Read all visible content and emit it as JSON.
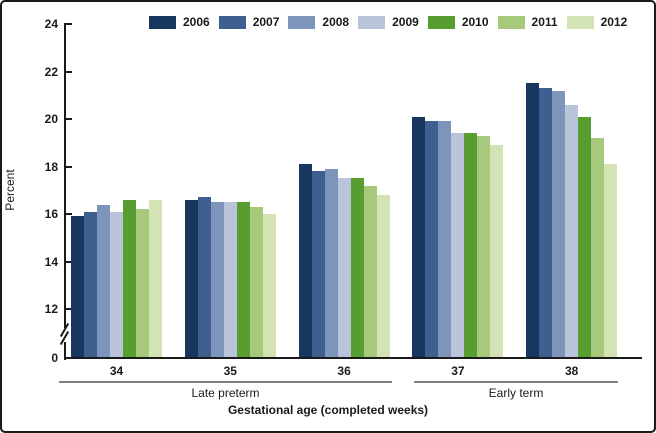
{
  "chart_data": {
    "type": "bar",
    "title": "",
    "xlabel": "Gestational age (completed weeks)",
    "ylabel": "Percent",
    "categories": [
      "34",
      "35",
      "36",
      "37",
      "38"
    ],
    "series": [
      {
        "name": "2006",
        "color": "#17375e",
        "values": [
          15.9,
          16.6,
          18.1,
          20.1,
          21.5
        ]
      },
      {
        "name": "2007",
        "color": "#3f608f",
        "values": [
          16.1,
          16.7,
          17.8,
          19.9,
          21.3
        ]
      },
      {
        "name": "2008",
        "color": "#7d95bb",
        "values": [
          16.4,
          16.5,
          17.9,
          19.9,
          21.2
        ]
      },
      {
        "name": "2009",
        "color": "#b9c3da",
        "values": [
          16.1,
          16.5,
          17.5,
          19.4,
          20.6
        ]
      },
      {
        "name": "2010",
        "color": "#579d30",
        "values": [
          16.6,
          16.5,
          17.5,
          19.4,
          20.1
        ]
      },
      {
        "name": "2011",
        "color": "#a7c97c",
        "values": [
          16.2,
          16.3,
          17.2,
          19.3,
          19.2
        ]
      },
      {
        "name": "2012",
        "color": "#d4e3b4",
        "values": [
          16.6,
          16.0,
          16.8,
          18.9,
          18.1
        ]
      }
    ],
    "y_ticks": [
      24,
      22,
      20,
      18,
      16,
      14,
      12,
      0
    ],
    "ylim": [
      0,
      24
    ],
    "axis_break": true,
    "grid": false,
    "legend_position": "top",
    "category_groups": [
      {
        "label": "Late preterm",
        "categories": [
          "34",
          "35",
          "36"
        ]
      },
      {
        "label": "Early term",
        "categories": [
          "37",
          "38"
        ]
      }
    ]
  }
}
